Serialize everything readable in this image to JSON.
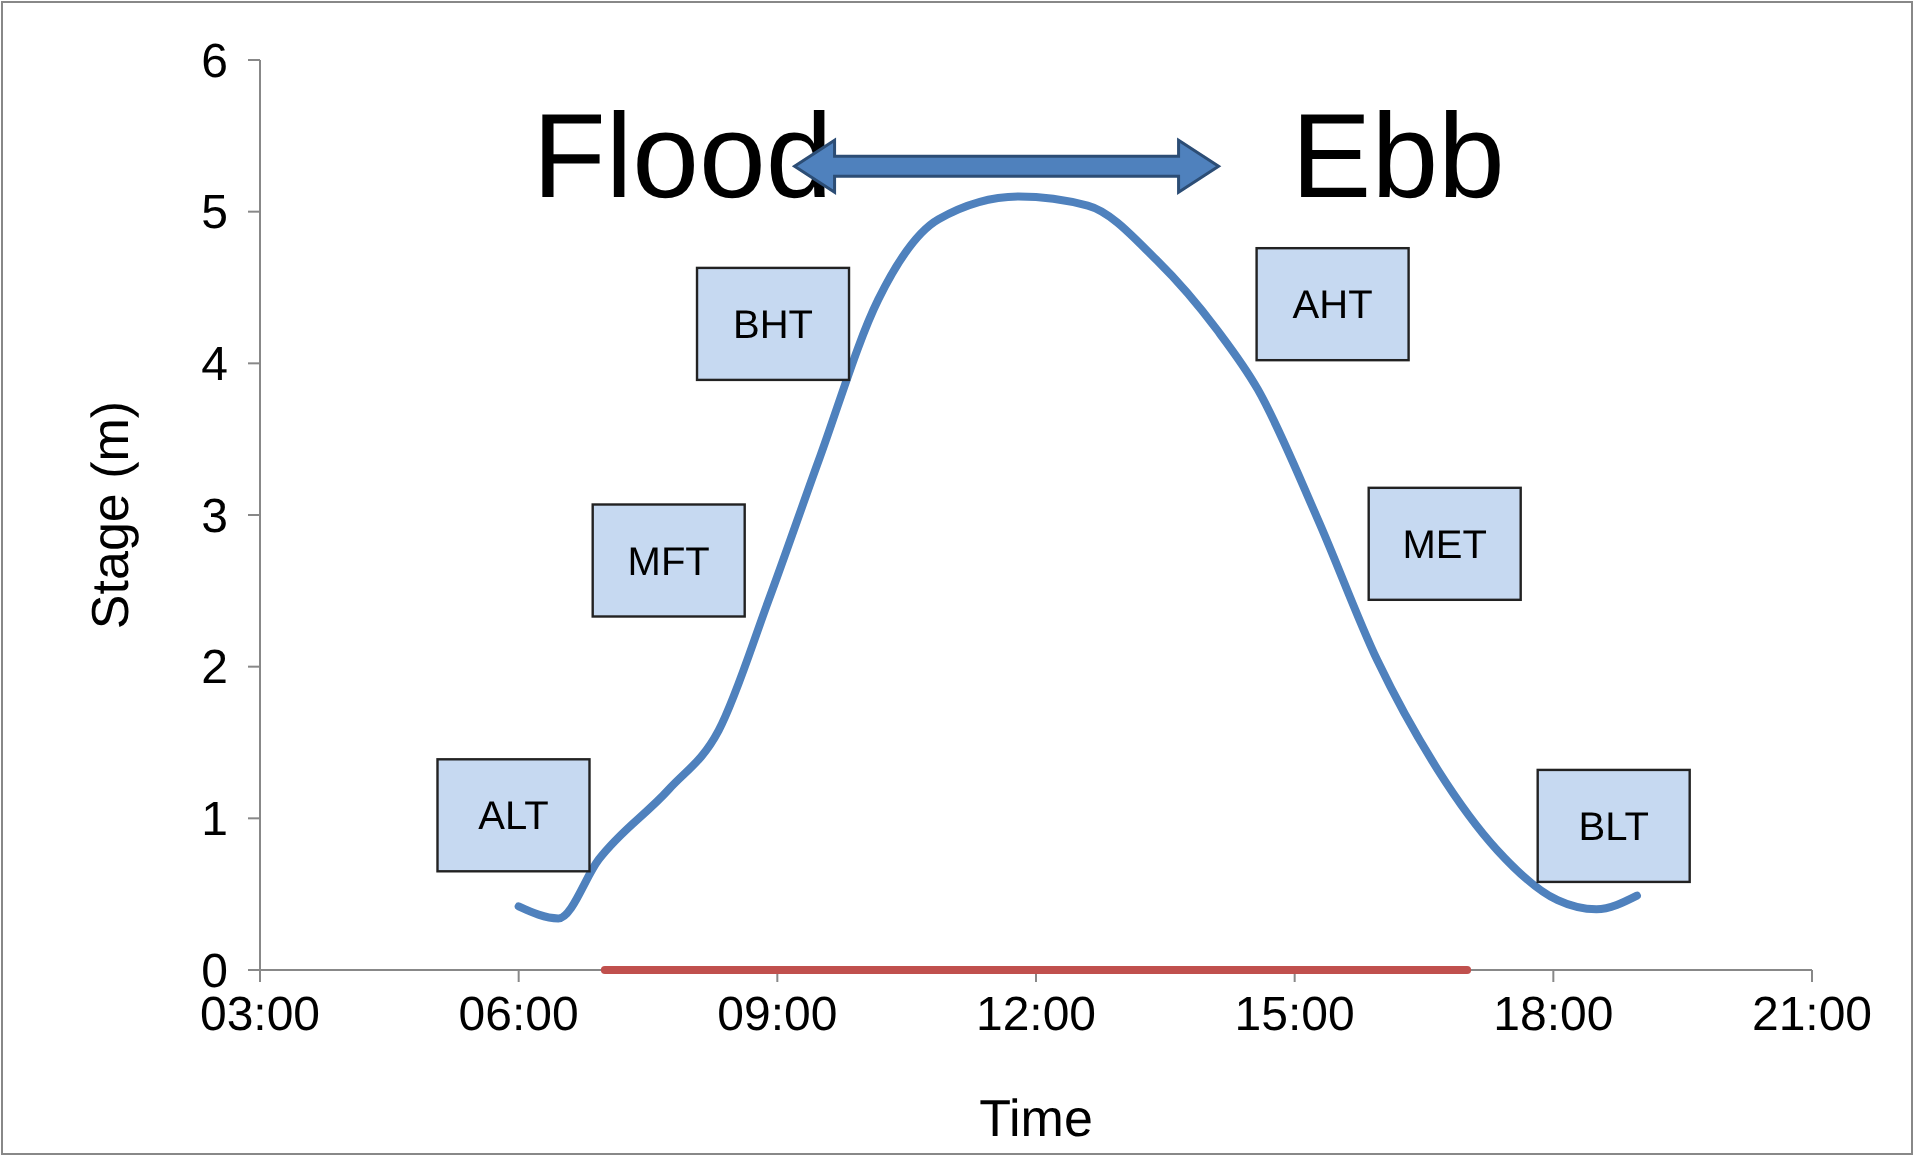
{
  "chart_data": {
    "type": "line",
    "xlabel": "Time",
    "ylabel": "Stage (m)",
    "xlim": [
      3,
      21
    ],
    "xticks": [
      {
        "value": 3,
        "label": "03:00"
      },
      {
        "value": 6,
        "label": "06:00"
      },
      {
        "value": 9,
        "label": "09:00"
      },
      {
        "value": 12,
        "label": "12:00"
      },
      {
        "value": 15,
        "label": "15:00"
      },
      {
        "value": 18,
        "label": "18:00"
      },
      {
        "value": 21,
        "label": "21:00"
      }
    ],
    "ylim": [
      0,
      6
    ],
    "yticks": [
      0,
      1,
      2,
      3,
      4,
      5,
      6
    ],
    "grid": false,
    "series": [
      {
        "color": "#4f81bd",
        "x": [
          6.0,
          6.46,
          6.93,
          7.74,
          8.32,
          8.9,
          9.48,
          10.17,
          10.87,
          11.8,
          12.6,
          13.4,
          14.1,
          14.57,
          15.27,
          15.96,
          16.66,
          17.35,
          18.05,
          18.5,
          18.97
        ],
        "values": [
          0.42,
          0.34,
          0.73,
          1.19,
          1.58,
          2.44,
          3.36,
          4.42,
          4.95,
          5.1,
          5.04,
          4.68,
          4.22,
          3.83,
          2.97,
          2.04,
          1.32,
          0.79,
          0.46,
          0.4,
          0.49
        ]
      },
      {
        "color": "#c0504d",
        "x": [
          7,
          17
        ],
        "values": [
          0,
          0
        ]
      }
    ],
    "annotations": [
      "Flood",
      "Ebb",
      "ALT",
      "MFT",
      "BHT",
      "AHT",
      "MET",
      "BLT"
    ]
  }
}
